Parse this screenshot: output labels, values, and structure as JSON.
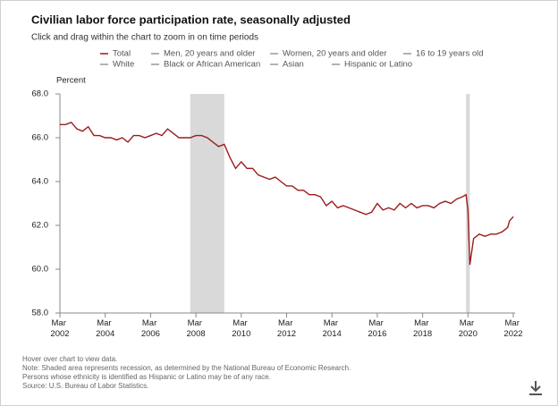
{
  "chart_data": {
    "type": "line",
    "title": "Civilian labor force participation rate, seasonally adjusted",
    "subtitle": "Click and drag within the chart to zoom in on time periods",
    "y_label": "Percent",
    "series": [
      {
        "name": "Total",
        "color": "#9b1b1b",
        "x": [
          "2002-03",
          "2002-06",
          "2002-09",
          "2002-12",
          "2003-03",
          "2003-06",
          "2003-09",
          "2003-12",
          "2004-03",
          "2004-06",
          "2004-09",
          "2004-12",
          "2005-03",
          "2005-06",
          "2005-09",
          "2005-12",
          "2006-03",
          "2006-06",
          "2006-09",
          "2006-12",
          "2007-03",
          "2007-06",
          "2007-09",
          "2007-12",
          "2008-03",
          "2008-06",
          "2008-09",
          "2008-12",
          "2009-03",
          "2009-06",
          "2009-09",
          "2009-12",
          "2010-03",
          "2010-06",
          "2010-09",
          "2010-12",
          "2011-03",
          "2011-06",
          "2011-09",
          "2011-12",
          "2012-03",
          "2012-06",
          "2012-09",
          "2012-12",
          "2013-03",
          "2013-06",
          "2013-09",
          "2013-12",
          "2014-03",
          "2014-06",
          "2014-09",
          "2014-12",
          "2015-03",
          "2015-06",
          "2015-09",
          "2015-12",
          "2016-03",
          "2016-06",
          "2016-09",
          "2016-12",
          "2017-03",
          "2017-06",
          "2017-09",
          "2017-12",
          "2018-03",
          "2018-06",
          "2018-09",
          "2018-12",
          "2019-03",
          "2019-06",
          "2019-09",
          "2019-12",
          "2020-02",
          "2020-03",
          "2020-04",
          "2020-05",
          "2020-06",
          "2020-09",
          "2020-12",
          "2021-03",
          "2021-06",
          "2021-09",
          "2021-12",
          "2022-01",
          "2022-02",
          "2022-03"
        ],
        "values": [
          66.6,
          66.6,
          66.7,
          66.4,
          66.3,
          66.5,
          66.1,
          66.1,
          66.0,
          66.0,
          65.9,
          66.0,
          65.8,
          66.1,
          66.1,
          66.0,
          66.1,
          66.2,
          66.1,
          66.4,
          66.2,
          66.0,
          66.0,
          66.0,
          66.1,
          66.1,
          66.0,
          65.8,
          65.6,
          65.7,
          65.1,
          64.6,
          64.9,
          64.6,
          64.6,
          64.3,
          64.2,
          64.1,
          64.2,
          64.0,
          63.8,
          63.8,
          63.6,
          63.6,
          63.4,
          63.4,
          63.3,
          62.9,
          63.1,
          62.8,
          62.9,
          62.8,
          62.7,
          62.6,
          62.5,
          62.6,
          63.0,
          62.7,
          62.8,
          62.7,
          63.0,
          62.8,
          63.0,
          62.8,
          62.9,
          62.9,
          62.8,
          63.0,
          63.1,
          63.0,
          63.2,
          63.3,
          63.4,
          62.7,
          60.2,
          60.8,
          61.4,
          61.6,
          61.5,
          61.6,
          61.6,
          61.7,
          61.9,
          62.2,
          62.3,
          62.4
        ]
      }
    ],
    "other_legend": [
      {
        "name": "Men, 20 years and older",
        "color": "#999999"
      },
      {
        "name": "Women, 20 years and older",
        "color": "#999999"
      },
      {
        "name": "16 to 19 years old",
        "color": "#999999"
      },
      {
        "name": "White",
        "color": "#999999"
      },
      {
        "name": "Black or African American",
        "color": "#999999"
      },
      {
        "name": "Asian",
        "color": "#999999"
      },
      {
        "name": "Hispanic or Latino",
        "color": "#999999"
      }
    ],
    "recessions": [
      [
        "2007-12",
        "2009-06"
      ],
      [
        "2020-02",
        "2020-04"
      ]
    ],
    "recession_color": "#d9d9d9",
    "xlim": [
      "2002-03",
      "2022-03"
    ],
    "xticks": [
      {
        "value": "2002-03",
        "label": "Mar 2002"
      },
      {
        "value": "2004-03",
        "label": "Mar 2004"
      },
      {
        "value": "2006-03",
        "label": "Mar 2006"
      },
      {
        "value": "2008-03",
        "label": "Mar 2008"
      },
      {
        "value": "2010-03",
        "label": "Mar 2010"
      },
      {
        "value": "2012-03",
        "label": "Mar 2012"
      },
      {
        "value": "2014-03",
        "label": "Mar 2014"
      },
      {
        "value": "2016-03",
        "label": "Mar 2016"
      },
      {
        "value": "2018-03",
        "label": "Mar 2018"
      },
      {
        "value": "2020-03",
        "label": "Mar 2020"
      },
      {
        "value": "2022-03",
        "label": "Mar 2022"
      }
    ],
    "ylim": [
      58,
      68
    ],
    "yticks": [
      {
        "value": 58,
        "label": "58.0"
      },
      {
        "value": 60,
        "label": "60.0"
      },
      {
        "value": 62,
        "label": "62.0"
      },
      {
        "value": 64,
        "label": "64.0"
      },
      {
        "value": 66,
        "label": "66.0"
      },
      {
        "value": 68,
        "label": "68.0"
      }
    ],
    "grid": false,
    "notes": [
      "Hover over chart to view data.",
      "Note: Shaded area represents recession, as determined by the National Bureau of Economic Research.",
      "Persons whose ethnicity is identified as Hispanic or Latino may be of any race.",
      "Source: U.S. Bureau of Labor Statistics."
    ]
  }
}
